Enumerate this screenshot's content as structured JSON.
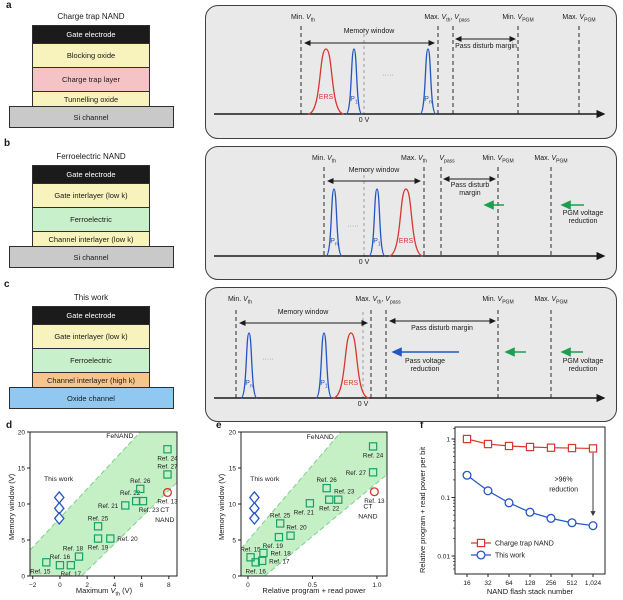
{
  "colors": {
    "red": "#d6372e",
    "blue": "#2356c0",
    "green": "#1e9e50",
    "square": "#14a269",
    "band": "#c5efc5",
    "band_edge": "#7ecf92",
    "fenand_text": "#3cab50",
    "black": "#1a1a1a"
  },
  "panels": {
    "a": {
      "letter": "a",
      "stack": {
        "title": "Charge trap NAND",
        "layers": [
          {
            "label": "Gate electrode",
            "bg": "#1b1b1b",
            "fg": "#ffffff"
          },
          {
            "label": "Blocking oxide",
            "bg": "#f8f2bd",
            "fg": "#1a1a1a"
          },
          {
            "label": "Charge trap layer",
            "bg": "#f5c3c6",
            "fg": "#1a1a1a"
          },
          {
            "label": "Tunnelling oxide",
            "bg": "#f8f2bd",
            "fg": "#1a1a1a"
          }
        ],
        "substrate": {
          "label": "Si channel",
          "bg": "#c9c9c9",
          "fg": "#1a1a1a"
        }
      },
      "diagram": {
        "min_vth": [
          {
            "t": "Min. "
          },
          {
            "t": "V",
            "i": 1,
            "sub": "th"
          }
        ],
        "max_vth_vpass": [
          {
            "t": "Max. "
          },
          {
            "t": "V",
            "i": 1,
            "sub": "th"
          },
          {
            "t": ", "
          },
          {
            "t": "V",
            "i": 1,
            "sub": "pass"
          }
        ],
        "min_vpgm": [
          {
            "t": "Min. "
          },
          {
            "t": "V",
            "i": 1,
            "sub": "PGM"
          }
        ],
        "max_vpgm": [
          {
            "t": "Max. "
          },
          {
            "t": "V",
            "i": 1,
            "sub": "PGM"
          }
        ],
        "memory_window": "Memory window",
        "pass_disturb": "Pass disturb margin",
        "zero": "0 V",
        "ers": "ERS",
        "p1": [
          {
            "t": "P",
            "sub": "1"
          }
        ],
        "pn": [
          {
            "t": "P",
            "sub": "n"
          }
        ],
        "dots": "·····"
      }
    },
    "b": {
      "letter": "b",
      "stack": {
        "title": "Ferroelectric NAND",
        "layers": [
          {
            "label": "Gate electrode",
            "bg": "#1b1b1b",
            "fg": "#ffffff"
          },
          {
            "label": "Gate interlayer (low k)",
            "bg": "#f8f2bd",
            "fg": "#1a1a1a"
          },
          {
            "label": "Ferroelectric",
            "bg": "#c8f0ca",
            "fg": "#1a1a1a"
          },
          {
            "label": "Channel interlayer (low k)",
            "bg": "#f8f2bd",
            "fg": "#1a1a1a"
          }
        ],
        "substrate": {
          "label": "Si channel",
          "bg": "#c9c9c9",
          "fg": "#1a1a1a"
        }
      },
      "diagram": {
        "min_vth": [
          {
            "t": "Min. "
          },
          {
            "t": "V",
            "i": 1,
            "sub": "th"
          }
        ],
        "max_vth": [
          {
            "t": "Max. "
          },
          {
            "t": "V",
            "i": 1,
            "sub": "th"
          }
        ],
        "vpass": [
          {
            "t": "V",
            "i": 1,
            "sub": "pass"
          }
        ],
        "min_vpgm": [
          {
            "t": "Min. "
          },
          {
            "t": "V",
            "i": 1,
            "sub": "PGM"
          }
        ],
        "max_vpgm": [
          {
            "t": "Max. "
          },
          {
            "t": "V",
            "i": 1,
            "sub": "PGM"
          }
        ],
        "memory_window": "Memory window",
        "pass_disturb": "Pass disturb margin",
        "pgm_reduction": "PGM voltage reduction",
        "zero": "0 V",
        "ers": "ERS",
        "p1": [
          {
            "t": "P",
            "sub": "1"
          }
        ],
        "pn": [
          {
            "t": "P",
            "sub": "n"
          }
        ],
        "dots": "·····"
      }
    },
    "c": {
      "letter": "c",
      "stack": {
        "title": "This work",
        "layers": [
          {
            "label": "Gate electrode",
            "bg": "#1b1b1b",
            "fg": "#ffffff"
          },
          {
            "label": "Gate interlayer (low k)",
            "bg": "#f8f2bd",
            "fg": "#1a1a1a"
          },
          {
            "label": "Ferroelectric",
            "bg": "#c8f0ca",
            "fg": "#1a1a1a"
          },
          {
            "label": "Channel interlayer (high k)",
            "bg": "#f6c48c",
            "fg": "#1a1a1a"
          }
        ],
        "substrate": {
          "label": "Oxide channel",
          "bg": "#90c8f2",
          "fg": "#1a1a1a"
        }
      },
      "diagram": {
        "min_vth": [
          {
            "t": "Min. "
          },
          {
            "t": "V",
            "i": 1,
            "sub": "th"
          }
        ],
        "max_vth_vpass": [
          {
            "t": "Max. "
          },
          {
            "t": "V",
            "i": 1,
            "sub": "th"
          },
          {
            "t": ", "
          },
          {
            "t": "V",
            "i": 1,
            "sub": "pass"
          }
        ],
        "min_vpgm": [
          {
            "t": "Min. "
          },
          {
            "t": "V",
            "i": 1,
            "sub": "PGM"
          }
        ],
        "max_vpgm": [
          {
            "t": "Max. "
          },
          {
            "t": "V",
            "i": 1,
            "sub": "PGM"
          }
        ],
        "memory_window": "Memory window",
        "pass_disturb": "Pass disturb margin",
        "pass_reduction": "Pass voltage reduction",
        "pgm_reduction": "PGM voltage reduction",
        "zero": "0 V",
        "ers": "ERS",
        "p1": [
          {
            "t": "P",
            "sub": "1"
          }
        ],
        "pn": [
          {
            "t": "P",
            "sub": "n"
          }
        ],
        "dots": "·····"
      }
    },
    "d": {
      "letter": "d"
    },
    "e": {
      "letter": "e"
    },
    "f": {
      "letter": "f"
    }
  },
  "chart_data": [
    {
      "id": "d",
      "type": "scatter",
      "xlabel_segments": [
        {
          "t": "Maximum "
        },
        {
          "t": "V",
          "i": 1,
          "sub": "th"
        },
        {
          "t": " (V)"
        }
      ],
      "ylabel": "Memory window (V)",
      "xlim": [
        -2.2,
        8.6
      ],
      "ylim": [
        0,
        20
      ],
      "xticks": [
        {
          "v": -2,
          "l": "−2"
        },
        {
          "v": 0,
          "l": "0"
        },
        {
          "v": 2,
          "l": "2"
        },
        {
          "v": 4,
          "l": "4"
        },
        {
          "v": 6,
          "l": "6"
        },
        {
          "v": 8,
          "l": "8"
        }
      ],
      "yticks": [
        {
          "v": 0,
          "l": "0"
        },
        {
          "v": 5,
          "l": "5"
        },
        {
          "v": 10,
          "l": "10"
        },
        {
          "v": 15,
          "l": "15"
        },
        {
          "v": 20,
          "l": "20"
        }
      ],
      "band": {
        "label": "FeNAND",
        "polygon": [
          [
            -2.2,
            3.6
          ],
          [
            5.9,
            20
          ],
          [
            8.6,
            20
          ],
          [
            8.6,
            13.0
          ],
          [
            1.6,
            0
          ],
          [
            -2.2,
            0
          ]
        ],
        "edges": [
          [
            -2.2,
            3.6,
            5.9,
            20
          ],
          [
            1.6,
            0,
            8.6,
            13.0
          ]
        ]
      },
      "series": [
        {
          "name": "FeNAND",
          "marker": "square",
          "color": "square",
          "points": [
            {
              "x": -1.0,
              "y": 1.9,
              "label": "Ref. 15",
              "lp": "bl"
            },
            {
              "x": 0.0,
              "y": 1.5,
              "label": "Ref. 16",
              "lp": "a"
            },
            {
              "x": 0.8,
              "y": 1.5,
              "label": "Ref. 17",
              "lp": "b"
            },
            {
              "x": 1.4,
              "y": 2.7,
              "label": "Ref. 18",
              "lp": "al"
            },
            {
              "x": 2.8,
              "y": 5.2,
              "label": "Ref. 19",
              "lp": "b"
            },
            {
              "x": 3.7,
              "y": 5.2,
              "label": "Ref. 20",
              "lp": "r"
            },
            {
              "x": 2.8,
              "y": 6.9,
              "label": "Ref. 25",
              "lp": "a"
            },
            {
              "x": 4.8,
              "y": 9.8,
              "label": "Ref. 21",
              "lp": "l"
            },
            {
              "x": 5.6,
              "y": 10.4,
              "label": "Ref. 22",
              "lp": "al"
            },
            {
              "x": 6.1,
              "y": 10.4,
              "label": "Ref. 23",
              "lp": "br"
            },
            {
              "x": 5.9,
              "y": 12.1,
              "label": "Ref. 26",
              "lp": "a"
            },
            {
              "x": 7.9,
              "y": 14.1,
              "label": "Ref. 27",
              "lp": "a"
            },
            {
              "x": 7.9,
              "y": 17.6,
              "label": "Ref. 24",
              "lp": "b"
            }
          ]
        },
        {
          "name": "This work",
          "marker": "diamond",
          "color": "blue",
          "points": [
            {
              "x": -0.05,
              "y": 10.9
            },
            {
              "x": -0.05,
              "y": 9.4
            },
            {
              "x": -0.05,
              "y": 8.0
            }
          ]
        },
        {
          "name": "CT NAND",
          "marker": "circle",
          "color": "red",
          "points": [
            {
              "x": 7.9,
              "y": 11.6,
              "label": "Ref. 13",
              "lp": "b"
            }
          ]
        }
      ],
      "annotations": [
        {
          "text": "FeNAND",
          "x": 4.4,
          "y": 19.2,
          "color": "fenand_text"
        },
        {
          "text": "This work",
          "x": -0.1,
          "y": 13.2,
          "color": "blue"
        },
        {
          "text": "CT",
          "x": 7.7,
          "y": 8.9,
          "color": "red"
        },
        {
          "text": "NAND",
          "x": 7.7,
          "y": 7.5,
          "color": "red"
        }
      ]
    },
    {
      "id": "e",
      "type": "scatter",
      "xlabel": "Relative program + read power",
      "ylabel": "Memory window (V)",
      "xlim": [
        -0.054,
        1.078
      ],
      "ylim": [
        0,
        20
      ],
      "xticks": [
        {
          "v": 0,
          "l": "0"
        },
        {
          "v": 0.5,
          "l": "0.5"
        },
        {
          "v": 1.0,
          "l": "1.0"
        }
      ],
      "yticks": [
        {
          "v": 0,
          "l": "0"
        },
        {
          "v": 5,
          "l": "5"
        },
        {
          "v": 10,
          "l": "10"
        },
        {
          "v": 15,
          "l": "15"
        },
        {
          "v": 20,
          "l": "20"
        }
      ],
      "band": {
        "label": "FeNAND",
        "polygon": [
          [
            -0.054,
            3.8
          ],
          [
            0.72,
            20
          ],
          [
            1.078,
            20
          ],
          [
            1.078,
            14.1
          ],
          [
            0.13,
            0
          ],
          [
            -0.054,
            0
          ]
        ],
        "edges": [
          [
            -0.054,
            3.8,
            0.72,
            20
          ],
          [
            0.13,
            0,
            1.078,
            14.1
          ]
        ]
      },
      "series": [
        {
          "name": "FeNAND",
          "marker": "square",
          "color": "square",
          "points": [
            {
              "x": 0.02,
              "y": 2.6,
              "label": "Ref. 15",
              "lp": "a"
            },
            {
              "x": 0.06,
              "y": 1.9,
              "label": "Ref. 16",
              "lp": "b"
            },
            {
              "x": 0.11,
              "y": 2.1,
              "label": "Ref. 17",
              "lp": "r"
            },
            {
              "x": 0.12,
              "y": 3.2,
              "label": "Ref. 18",
              "lp": "r"
            },
            {
              "x": 0.24,
              "y": 5.4,
              "label": "Ref. 19",
              "lp": "bl"
            },
            {
              "x": 0.33,
              "y": 5.6,
              "label": "Ref. 20",
              "lp": "ar"
            },
            {
              "x": 0.25,
              "y": 7.3,
              "label": "Ref. 25",
              "lp": "a"
            },
            {
              "x": 0.48,
              "y": 10.1,
              "label": "Ref. 21",
              "lp": "bl"
            },
            {
              "x": 0.63,
              "y": 10.6,
              "label": "Ref. 22",
              "lp": "b"
            },
            {
              "x": 0.7,
              "y": 10.6,
              "label": "Ref. 23",
              "lp": "ar"
            },
            {
              "x": 0.61,
              "y": 12.2,
              "label": "Ref. 26",
              "lp": "a"
            },
            {
              "x": 0.97,
              "y": 14.4,
              "label": "Ref. 27",
              "lp": "l"
            },
            {
              "x": 0.97,
              "y": 18.0,
              "label": "Ref. 24",
              "lp": "b"
            }
          ]
        },
        {
          "name": "This work",
          "marker": "diamond",
          "color": "blue",
          "points": [
            {
              "x": 0.05,
              "y": 10.9
            },
            {
              "x": 0.05,
              "y": 9.4
            },
            {
              "x": 0.05,
              "y": 8.0
            }
          ]
        },
        {
          "name": "CT NAND",
          "marker": "circle",
          "color": "red",
          "points": [
            {
              "x": 0.98,
              "y": 11.7,
              "label": "Ref. 13",
              "lp": "b"
            }
          ]
        }
      ],
      "annotations": [
        {
          "text": "FeNAND",
          "x": 0.56,
          "y": 19.0,
          "color": "fenand_text"
        },
        {
          "text": "This work",
          "x": 0.13,
          "y": 13.2,
          "color": "blue"
        },
        {
          "text": "CT",
          "x": 0.93,
          "y": 9.4,
          "color": "red"
        },
        {
          "text": "NAND",
          "x": 0.93,
          "y": 8.0,
          "color": "red"
        }
      ]
    },
    {
      "id": "f",
      "type": "line",
      "xlabel": "NAND flash stack number",
      "ylabel": "Relative program + read power per bit",
      "categories": [
        "16",
        "32",
        "64",
        "128",
        "256",
        "512",
        "1,024"
      ],
      "yticks": [
        {
          "v": 1,
          "l": "1"
        },
        {
          "v": 0.1,
          "l": "0.1"
        },
        {
          "v": 0.01,
          "l": "0.01"
        }
      ],
      "ylim": [
        0.0049,
        1.6
      ],
      "yscale": "log",
      "series": [
        {
          "name": "Charge trap NAND",
          "marker": "square",
          "color": "red",
          "values": [
            1.0,
            0.82,
            0.76,
            0.73,
            0.71,
            0.7,
            0.69
          ]
        },
        {
          "name": "This work",
          "marker": "circle",
          "color": "blue",
          "values": [
            0.24,
            0.13,
            0.081,
            0.056,
            0.044,
            0.037,
            0.033
          ]
        }
      ],
      "arrow": {
        "xi": 6,
        "from": 0.58,
        "to": 0.048
      },
      "note": {
        "lines": [
          ">96%",
          "reduction"
        ],
        "xi": 4.6,
        "y": 0.155
      },
      "legend": [
        {
          "marker": "square",
          "color": "red",
          "label": "Charge trap NAND"
        },
        {
          "marker": "circle",
          "color": "blue",
          "label": "This work"
        }
      ]
    }
  ]
}
